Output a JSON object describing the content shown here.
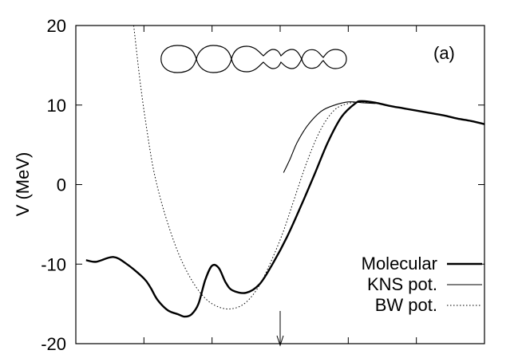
{
  "chart_data": {
    "type": "line",
    "ylabel": "V (MeV)",
    "xlabel": "",
    "panel_label": "(a)",
    "ylim": [
      -20,
      20
    ],
    "xlim": [
      0,
      6
    ],
    "yticks": [
      -20,
      -10,
      0,
      10,
      20
    ],
    "ytick_labels": [
      "-20",
      "-10",
      "0",
      "10",
      "20"
    ],
    "xticks": [
      0,
      1,
      2,
      3,
      4,
      5,
      6
    ],
    "legend_position": "bottom-right",
    "arrow_marker_x": 3.0,
    "series": [
      {
        "name": "Molecular",
        "style": "thick-solid",
        "x": [
          0.15,
          0.3,
          0.55,
          0.75,
          1.0,
          1.1,
          1.2,
          1.35,
          1.5,
          1.6,
          1.7,
          1.8,
          1.9,
          2.0,
          2.1,
          2.2,
          2.3,
          2.5,
          2.7,
          2.9,
          3.1,
          3.3,
          3.5,
          3.7,
          3.9,
          4.1,
          4.2,
          4.4,
          4.6,
          4.8,
          5.0,
          5.2,
          5.4,
          5.6,
          5.8,
          6.0
        ],
        "y": [
          -9.5,
          -9.7,
          -9.1,
          -10.0,
          -11.8,
          -13.0,
          -14.5,
          -15.8,
          -16.3,
          -16.6,
          -16.3,
          -15.0,
          -12.0,
          -10.2,
          -10.5,
          -12.3,
          -13.3,
          -13.6,
          -12.5,
          -9.8,
          -6.6,
          -2.8,
          1.2,
          5.3,
          8.5,
          10.2,
          10.5,
          10.3,
          9.9,
          9.6,
          9.3,
          9.0,
          8.7,
          8.3,
          8.0,
          7.6
        ]
      },
      {
        "name": "KNS pot.",
        "style": "thin-solid",
        "x": [
          3.05,
          3.15,
          3.25,
          3.4,
          3.6,
          3.8,
          4.0,
          4.2,
          4.4
        ],
        "y": [
          1.5,
          3.3,
          5.3,
          7.4,
          9.2,
          10.0,
          10.4,
          10.3,
          10.2
        ]
      },
      {
        "name": "BW pot.",
        "style": "dotted",
        "x": [
          0.85,
          0.95,
          1.05,
          1.15,
          1.3,
          1.5,
          1.7,
          1.9,
          2.1,
          2.3,
          2.5,
          2.7,
          2.9,
          3.05,
          3.2,
          3.4,
          3.6,
          3.8,
          4.0,
          4.2,
          4.4
        ],
        "y": [
          20.0,
          12.5,
          6.5,
          1.5,
          -3.5,
          -8.5,
          -12.0,
          -14.3,
          -15.4,
          -15.6,
          -14.8,
          -12.6,
          -9.0,
          -5.8,
          -2.0,
          3.0,
          7.0,
          9.4,
          10.2,
          10.4,
          10.2
        ]
      }
    ]
  }
}
